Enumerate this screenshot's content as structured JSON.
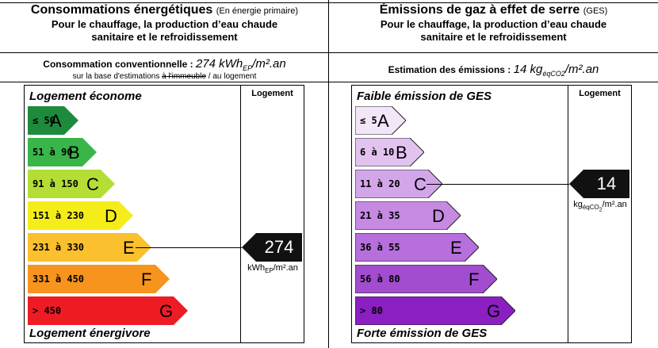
{
  "energy": {
    "title": "Consommations énergétiques",
    "title_note": "(En énergie primaire)",
    "subtitle_line1": "Pour le chauffage, la production d’eau chaude",
    "subtitle_line2": "sanitaire et le refroidissement",
    "conv_label": "Consommation conventionnelle : ",
    "conv_value": "274 kWh",
    "conv_sub": "EP",
    "conv_unit": "/m².an",
    "basis_prefix": "sur la base d'estimations ",
    "basis_strike": "à l'immeuble",
    "basis_suffix": " / au logement",
    "top_label": "Logement économe",
    "bottom_label": "Logement énergivore",
    "column_label": "Logement",
    "marker_value": "274",
    "marker_unit": "kWh",
    "marker_unit_sub": "EP",
    "marker_unit_tail": "/m².an",
    "current_class": "E",
    "classes": [
      {
        "range": "≤ 50",
        "letter": "A",
        "color": "#1e8a3c",
        "width_frac": 0.2
      },
      {
        "range": "51 à 90",
        "letter": "B",
        "color": "#39b54a",
        "width_frac": 0.3
      },
      {
        "range": "91 à 150",
        "letter": "C",
        "color": "#b4dd36",
        "width_frac": 0.4
      },
      {
        "range": "151 à 230",
        "letter": "D",
        "color": "#f5ed1a",
        "width_frac": 0.5
      },
      {
        "range": "231 à 330",
        "letter": "E",
        "color": "#fbc02d",
        "width_frac": 0.6
      },
      {
        "range": "331 à 450",
        "letter": "F",
        "color": "#f7941d",
        "width_frac": 0.7
      },
      {
        "range": "> 450",
        "letter": "G",
        "color": "#ed1c24",
        "width_frac": 0.8
      }
    ]
  },
  "ges": {
    "title": "Émissions de gaz à effet de serre",
    "title_note": "(GES)",
    "subtitle_line1": "Pour le chauffage, la production d’eau chaude",
    "subtitle_line2": "sanitaire et le refroidissement",
    "est_label": "Estimation des émissions : ",
    "est_value": "14 kg",
    "est_sub": "éqCO2",
    "est_unit": "/m².an",
    "top_label": "Faible émission de GES",
    "bottom_label": "Forte émission de GES",
    "column_label": "Logement",
    "marker_value": "14",
    "marker_unit": "kg",
    "marker_unit_sub": "éqCO",
    "marker_unit_sub2": "2",
    "marker_unit_tail": "/m².an",
    "current_class": "C",
    "classes": [
      {
        "range": "≤ 5",
        "letter": "A",
        "color": "#f3e6f8",
        "width_frac": 0.2
      },
      {
        "range": "6 à 10",
        "letter": "B",
        "color": "#e2c3f0",
        "width_frac": 0.3
      },
      {
        "range": "11 à 20",
        "letter": "C",
        "color": "#d3a6ea",
        "width_frac": 0.4
      },
      {
        "range": "21 à 35",
        "letter": "D",
        "color": "#c68ae3",
        "width_frac": 0.5
      },
      {
        "range": "36 à 55",
        "letter": "E",
        "color": "#b66fdc",
        "width_frac": 0.6
      },
      {
        "range": "56 à 80",
        "letter": "F",
        "color": "#a24cd0",
        "width_frac": 0.7
      },
      {
        "range": "> 80",
        "letter": "G",
        "color": "#8b1fc2",
        "width_frac": 0.8
      }
    ]
  }
}
